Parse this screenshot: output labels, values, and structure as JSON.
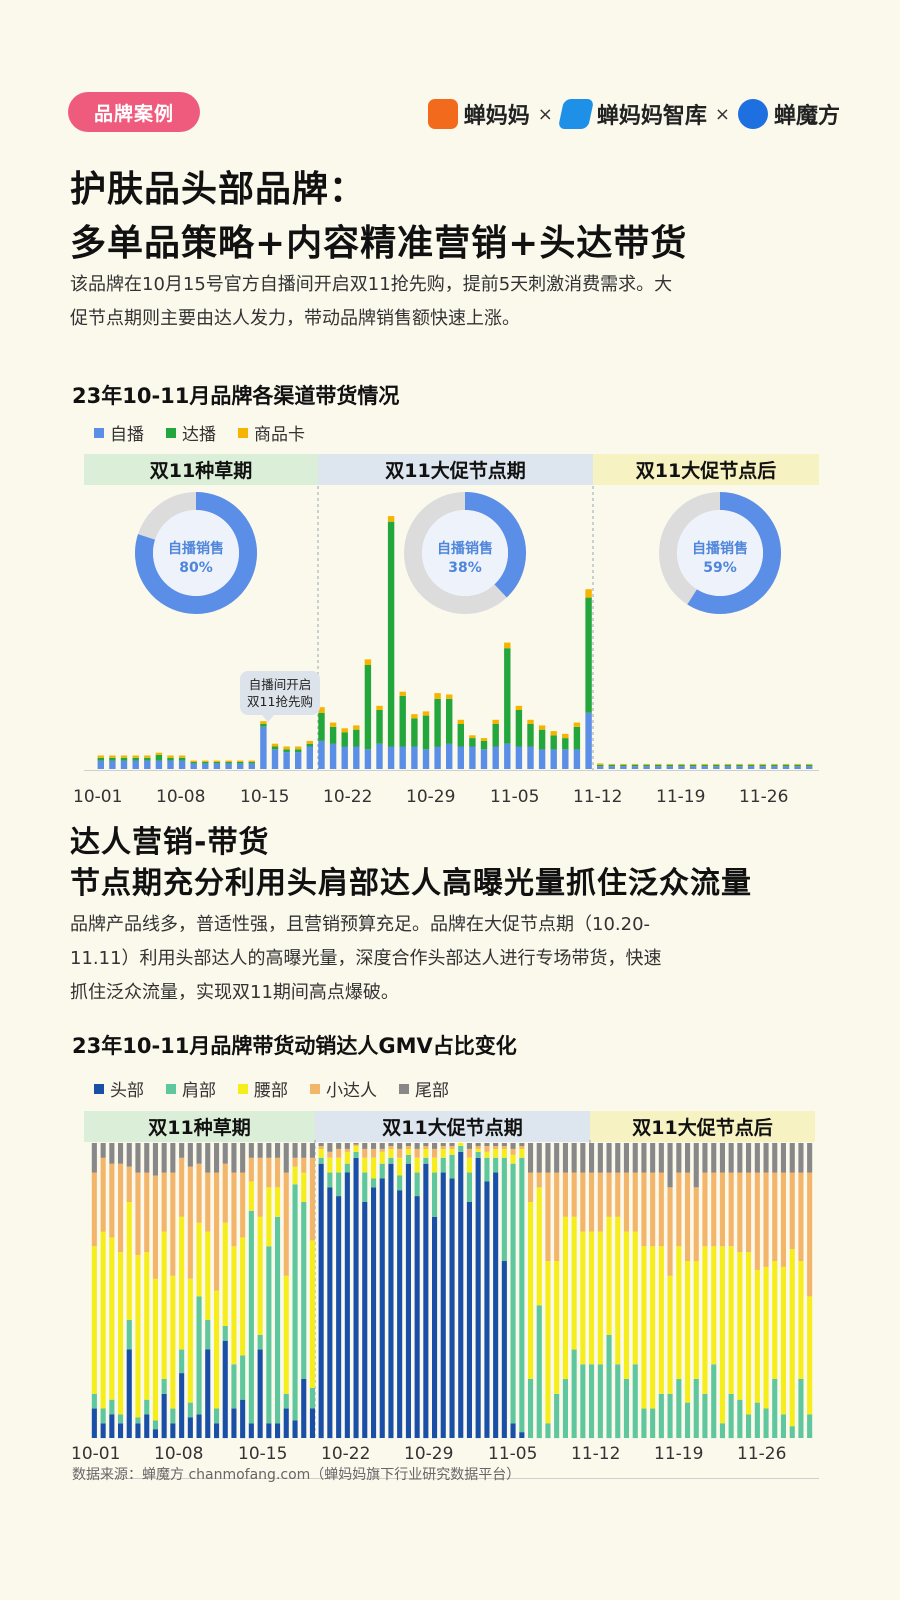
{
  "tag": "品牌案例",
  "logos": {
    "logo1": "蝉妈妈",
    "logo2": "蝉妈妈智库",
    "logo3": "蝉魔方",
    "separator": "×"
  },
  "header": {
    "title_line1": "护肤品头部品牌：",
    "title_line2": "多单品策略+内容精准营销+头达带货",
    "intro_line1": "该品牌在10月15号官方自播间开启双11抢先购，提前5天刺激消费需求。大",
    "intro_line2": "促节点期则主要由达人发力，带动品牌销售额快速上涨。"
  },
  "section2": {
    "title_line1": "达人营销-带货",
    "title_line2": "节点期充分利用头肩部达人高曝光量抓住泛众流量",
    "para_line1": "品牌产品线多，普适性强，且营销预算充足。品牌在大促节点期（10.20-",
    "para_line2": "11.11）利用头部达人的高曝光量，深度合作头部达人进行专场带货，快速",
    "para_line3": "抓住泛众流量，实现双11期间高点爆破。"
  },
  "source": "数据来源：蝉魔方 chanmofang.com（蝉妈妈旗下行业研究数据平台）",
  "chart_data": [
    {
      "type": "bar",
      "stacked": true,
      "title": "23年10-11月品牌各渠道带货情况",
      "series_names": [
        "自播",
        "达播",
        "商品卡"
      ],
      "colors": [
        "#5b8ee6",
        "#23a63c",
        "#f4b400"
      ],
      "x_ticks": [
        "10-01",
        "10-08",
        "10-15",
        "10-22",
        "10-29",
        "11-05",
        "11-12",
        "11-19",
        "11-26"
      ],
      "ylim": [
        0,
        100
      ],
      "phases": [
        {
          "label": "双11种草期",
          "color": "#dbeed7"
        },
        {
          "label": "双11大促节点期",
          "color": "#dde5ee"
        },
        {
          "label": "双11大促节点后",
          "color": "#f6f2c2"
        }
      ],
      "phase_shares": [
        {
          "label": "自播销售",
          "value": "80%",
          "pct": 80
        },
        {
          "label": "自播销售",
          "value": "38%",
          "pct": 38
        },
        {
          "label": "自播销售",
          "value": "59%",
          "pct": 59
        }
      ],
      "annotation_line1": "自播间开启",
      "annotation_line2": "双11抢先购",
      "self": [
        3,
        3,
        3,
        3,
        3,
        3,
        3,
        3,
        2,
        2,
        2,
        2,
        2,
        2,
        15,
        7,
        6,
        6,
        8,
        10,
        9,
        8,
        8,
        7,
        9,
        8,
        8,
        8,
        7,
        8,
        9,
        8,
        8,
        7,
        8,
        9,
        8,
        8,
        7,
        7,
        7,
        7,
        20,
        1,
        1,
        1,
        1,
        1,
        1,
        1,
        1,
        1,
        1,
        1,
        1,
        1,
        1,
        1,
        1,
        1,
        1,
        1
      ],
      "live": [
        1,
        1,
        1,
        1,
        1,
        2,
        1,
        1,
        0.5,
        0.5,
        0.5,
        0.5,
        0.5,
        0.5,
        1,
        1,
        1,
        1,
        1,
        10,
        6,
        5,
        6,
        30,
        12,
        80,
        18,
        10,
        12,
        17,
        16,
        8,
        3,
        3,
        8,
        34,
        13,
        8,
        7,
        5,
        4,
        8,
        41,
        0.5,
        0.5,
        0.5,
        0.5,
        0.5,
        0.5,
        0.5,
        0.5,
        0.5,
        0.5,
        0.5,
        0.5,
        0.5,
        0.5,
        0.5,
        0.5,
        0.5,
        0.5,
        0.5
      ],
      "card": [
        0.8,
        0.8,
        0.8,
        0.8,
        0.8,
        0.8,
        0.8,
        0.8,
        0.5,
        0.5,
        0.5,
        0.5,
        0.5,
        0.5,
        1,
        1,
        1,
        1,
        1,
        2,
        1.5,
        1.5,
        1.5,
        2,
        1.5,
        2,
        1.5,
        1.5,
        1.5,
        2,
        1.5,
        1.5,
        1,
        1,
        1.5,
        2,
        1.5,
        1.5,
        1.5,
        1.5,
        1.5,
        1.5,
        3,
        0.5,
        0.3,
        0.3,
        0.3,
        0.3,
        0.3,
        0.3,
        0.3,
        0.3,
        0.3,
        0.3,
        0.3,
        0.3,
        0.3,
        0.3,
        0.3,
        0.3,
        0.3,
        0.3
      ]
    },
    {
      "type": "bar",
      "stacked": true,
      "percent": true,
      "title": "23年10-11月品牌带货动销达人GMV占比变化",
      "series_names": [
        "头部",
        "肩部",
        "腰部",
        "小达人",
        "尾部"
      ],
      "colors": [
        "#1a4fa8",
        "#5fc79d",
        "#f6ee1c",
        "#f2b56a",
        "#888888"
      ],
      "x_ticks": [
        "10-01",
        "10-08",
        "10-15",
        "10-22",
        "10-29",
        "11-05",
        "11-12",
        "11-19",
        "11-26"
      ],
      "ylim": [
        0,
        100
      ],
      "phases": [
        {
          "label": "双11种草期",
          "color": "#dbeed7"
        },
        {
          "label": "双11大促节点期",
          "color": "#dde5ee"
        },
        {
          "label": "双11大促节点后",
          "color": "#f6f2c2"
        }
      ],
      "head": [
        10,
        5,
        8,
        5,
        30,
        5,
        8,
        3,
        15,
        5,
        22,
        7,
        8,
        30,
        5,
        33,
        10,
        13,
        5,
        30,
        5,
        5,
        10,
        6,
        20,
        10,
        93,
        85,
        82,
        90,
        95,
        80,
        85,
        88,
        93,
        84,
        93,
        82,
        93,
        75,
        90,
        88,
        97,
        80,
        95,
        87,
        90,
        60,
        5,
        2,
        0,
        0,
        0,
        0,
        0,
        0,
        0,
        0,
        0,
        0,
        0,
        0,
        0,
        0,
        0,
        0,
        0,
        0,
        0,
        0,
        0,
        0,
        0,
        0,
        0,
        0,
        0,
        0,
        0,
        0,
        0,
        0,
        0
      ],
      "shoulder": [
        5,
        5,
        5,
        3,
        10,
        2,
        5,
        3,
        5,
        5,
        8,
        5,
        40,
        10,
        5,
        5,
        15,
        15,
        72,
        5,
        60,
        70,
        5,
        80,
        60,
        7,
        2,
        5,
        8,
        3,
        2,
        10,
        3,
        5,
        2,
        5,
        3,
        8,
        2,
        15,
        5,
        8,
        2,
        10,
        2,
        8,
        5,
        35,
        88,
        93,
        20,
        45,
        5,
        15,
        20,
        30,
        25,
        25,
        25,
        35,
        25,
        20,
        25,
        10,
        10,
        15,
        15,
        20,
        12,
        20,
        15,
        25,
        5,
        15,
        13,
        8,
        12,
        10,
        20,
        8,
        4,
        20,
        8
      ],
      "waist": [
        50,
        60,
        55,
        55,
        40,
        55,
        50,
        48,
        50,
        45,
        45,
        42,
        25,
        30,
        40,
        35,
        40,
        40,
        10,
        40,
        20,
        10,
        40,
        6,
        10,
        50,
        3,
        5,
        5,
        4,
        2,
        5,
        7,
        4,
        3,
        6,
        2,
        5,
        3,
        5,
        3,
        2,
        1,
        5,
        1,
        2,
        3,
        3,
        3,
        3,
        60,
        40,
        55,
        45,
        55,
        45,
        45,
        45,
        45,
        40,
        50,
        50,
        45,
        55,
        55,
        50,
        40,
        45,
        48,
        40,
        50,
        40,
        60,
        50,
        50,
        55,
        45,
        48,
        40,
        50,
        60,
        40,
        40
      ],
      "small": [
        25,
        25,
        25,
        30,
        12,
        28,
        27,
        35,
        20,
        35,
        20,
        38,
        20,
        20,
        40,
        20,
        25,
        22,
        8,
        20,
        10,
        10,
        35,
        3,
        5,
        28,
        1,
        2,
        3,
        1,
        0.5,
        3,
        3,
        1,
        1,
        3,
        1,
        3,
        1,
        3,
        1,
        1,
        0,
        3,
        1,
        2,
        1,
        1,
        2,
        1,
        10,
        5,
        30,
        30,
        15,
        15,
        20,
        20,
        20,
        15,
        15,
        20,
        20,
        25,
        25,
        25,
        30,
        25,
        30,
        25,
        25,
        25,
        25,
        25,
        27,
        27,
        33,
        32,
        30,
        32,
        26,
        30,
        42
      ],
      "tail": [
        10,
        5,
        7,
        7,
        8,
        10,
        10,
        11,
        10,
        10,
        5,
        8,
        7,
        10,
        10,
        7,
        10,
        10,
        5,
        5,
        5,
        5,
        10,
        5,
        5,
        5,
        1,
        3,
        2,
        2,
        0.5,
        2,
        2,
        2,
        1,
        2,
        1,
        2,
        1,
        2,
        1,
        1,
        0,
        2,
        1,
        1,
        1,
        1,
        2,
        1,
        10,
        10,
        10,
        10,
        10,
        10,
        10,
        10,
        10,
        10,
        10,
        10,
        10,
        10,
        10,
        10,
        15,
        10,
        10,
        15,
        10,
        10,
        10,
        10,
        10,
        10,
        10,
        10,
        10,
        10,
        10,
        10,
        10
      ]
    }
  ]
}
